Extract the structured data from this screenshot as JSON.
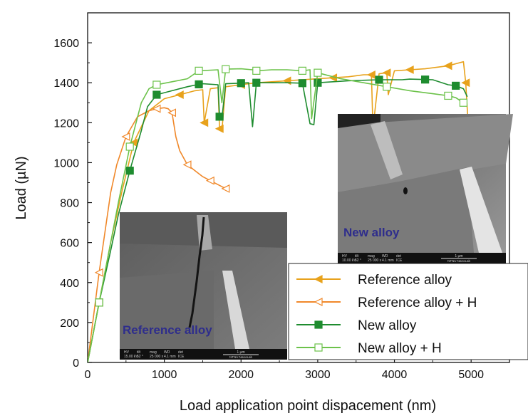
{
  "chart_data": {
    "type": "line",
    "title": "",
    "xlabel": "Load application point dispacement (nm)",
    "ylabel": "Load (µN)",
    "xlim": [
      0,
      5500
    ],
    "ylim": [
      0,
      1750
    ],
    "xticks": [
      "0",
      "1000",
      "2000",
      "3000",
      "4000",
      "5000"
    ],
    "yticks": [
      "0",
      "200",
      "400",
      "600",
      "800",
      "1000",
      "1200",
      "1400",
      "1600"
    ],
    "legend_position": "bottom-right",
    "series": [
      {
        "name": "Reference alloy",
        "color": "#e8a21c",
        "marker": "filled-triangle-left",
        "x": [
          0,
          150,
          300,
          450,
          600,
          800,
          1000,
          1200,
          1400,
          1500,
          1520,
          1600,
          1700,
          1720,
          1750,
          1800,
          2000,
          2200,
          2400,
          2600,
          2800,
          3000,
          3200,
          3400,
          3600,
          3700,
          3720,
          3800,
          3900,
          3920,
          4000,
          4200,
          4400,
          4600,
          4700,
          4800,
          4900,
          4930,
          4960
        ],
        "y": [
          0,
          300,
          600,
          860,
          1100,
          1260,
          1320,
          1340,
          1360,
          1365,
          1200,
          1370,
          1375,
          1170,
          1160,
          1380,
          1390,
          1400,
          1405,
          1410,
          1415,
          1420,
          1425,
          1430,
          1440,
          1440,
          1170,
          1445,
          1450,
          1340,
          1460,
          1465,
          1470,
          1480,
          1485,
          1495,
          1505,
          1400,
          1200
        ]
      },
      {
        "name": "Reference alloy + H",
        "color": "#f0882a",
        "marker": "open-triangle-left",
        "x": [
          0,
          150,
          300,
          380,
          500,
          650,
          800,
          900,
          1000,
          1050,
          1100,
          1150,
          1200,
          1300,
          1400,
          1500,
          1600,
          1700,
          1750,
          1800
        ],
        "y": [
          0,
          450,
          850,
          990,
          1130,
          1230,
          1260,
          1270,
          1275,
          1270,
          1250,
          1130,
          1060,
          990,
          960,
          930,
          910,
          890,
          880,
          870
        ]
      },
      {
        "name": "New alloy",
        "color": "#1e8c2f",
        "marker": "filled-square",
        "x": [
          0,
          150,
          300,
          400,
          550,
          700,
          780,
          900,
          1100,
          1300,
          1450,
          1500,
          1700,
          1720,
          1750,
          1800,
          2000,
          2100,
          2150,
          2200,
          2400,
          2600,
          2800,
          2900,
          2950,
          3000,
          3200,
          3400,
          3800,
          4100,
          4200,
          4400,
          4500,
          4700,
          4800,
          4900,
          4950
        ],
        "y": [
          0,
          300,
          560,
          740,
          960,
          1160,
          1280,
          1340,
          1360,
          1380,
          1392,
          1395,
          1390,
          1230,
          1220,
          1395,
          1398,
          1400,
          1180,
          1400,
          1400,
          1400,
          1398,
          1195,
          1190,
          1400,
          1405,
          1410,
          1415,
          1415,
          1418,
          1416,
          1415,
          1390,
          1385,
          1370,
          1330
        ]
      },
      {
        "name": "New alloy + H",
        "color": "#6cc24a",
        "marker": "open-square",
        "x": [
          0,
          150,
          300,
          400,
          550,
          700,
          800,
          900,
          1100,
          1300,
          1450,
          1700,
          1750,
          1800,
          2000,
          2150,
          2200,
          2400,
          2600,
          2800,
          2900,
          2920,
          3000,
          3300,
          3600,
          3900,
          4200,
          4500,
          4700,
          4750,
          4800,
          4900
        ],
        "y": [
          0,
          300,
          600,
          800,
          1080,
          1300,
          1370,
          1390,
          1405,
          1420,
          1460,
          1465,
          1300,
          1468,
          1470,
          1465,
          1460,
          1465,
          1465,
          1460,
          1465,
          1220,
          1450,
          1420,
          1400,
          1380,
          1360,
          1345,
          1335,
          1330,
          1325,
          1300
        ]
      }
    ],
    "annotations": [
      "Reference alloy",
      "New alloy"
    ]
  },
  "inset_left": {
    "caption": "Reference alloy",
    "databar": [
      "HV",
      "tilt",
      "mag",
      "WD",
      "det",
      "15.00 kV",
      "52 °",
      "25 000 x",
      "4.1 mm",
      "ICE",
      "1 µm",
      "NTNU NanoLab"
    ]
  },
  "inset_right": {
    "caption": "New alloy",
    "databar": [
      "HV",
      "tilt",
      "mag",
      "WD",
      "det",
      "10.00 kV",
      "52 °",
      "25 000 x",
      "4.1 mm",
      "ICE",
      "1 µm",
      "NTNU NanoLab"
    ]
  },
  "colors": {
    "caption": "#2e2d8c",
    "sem_background": "#6f6f6f"
  }
}
